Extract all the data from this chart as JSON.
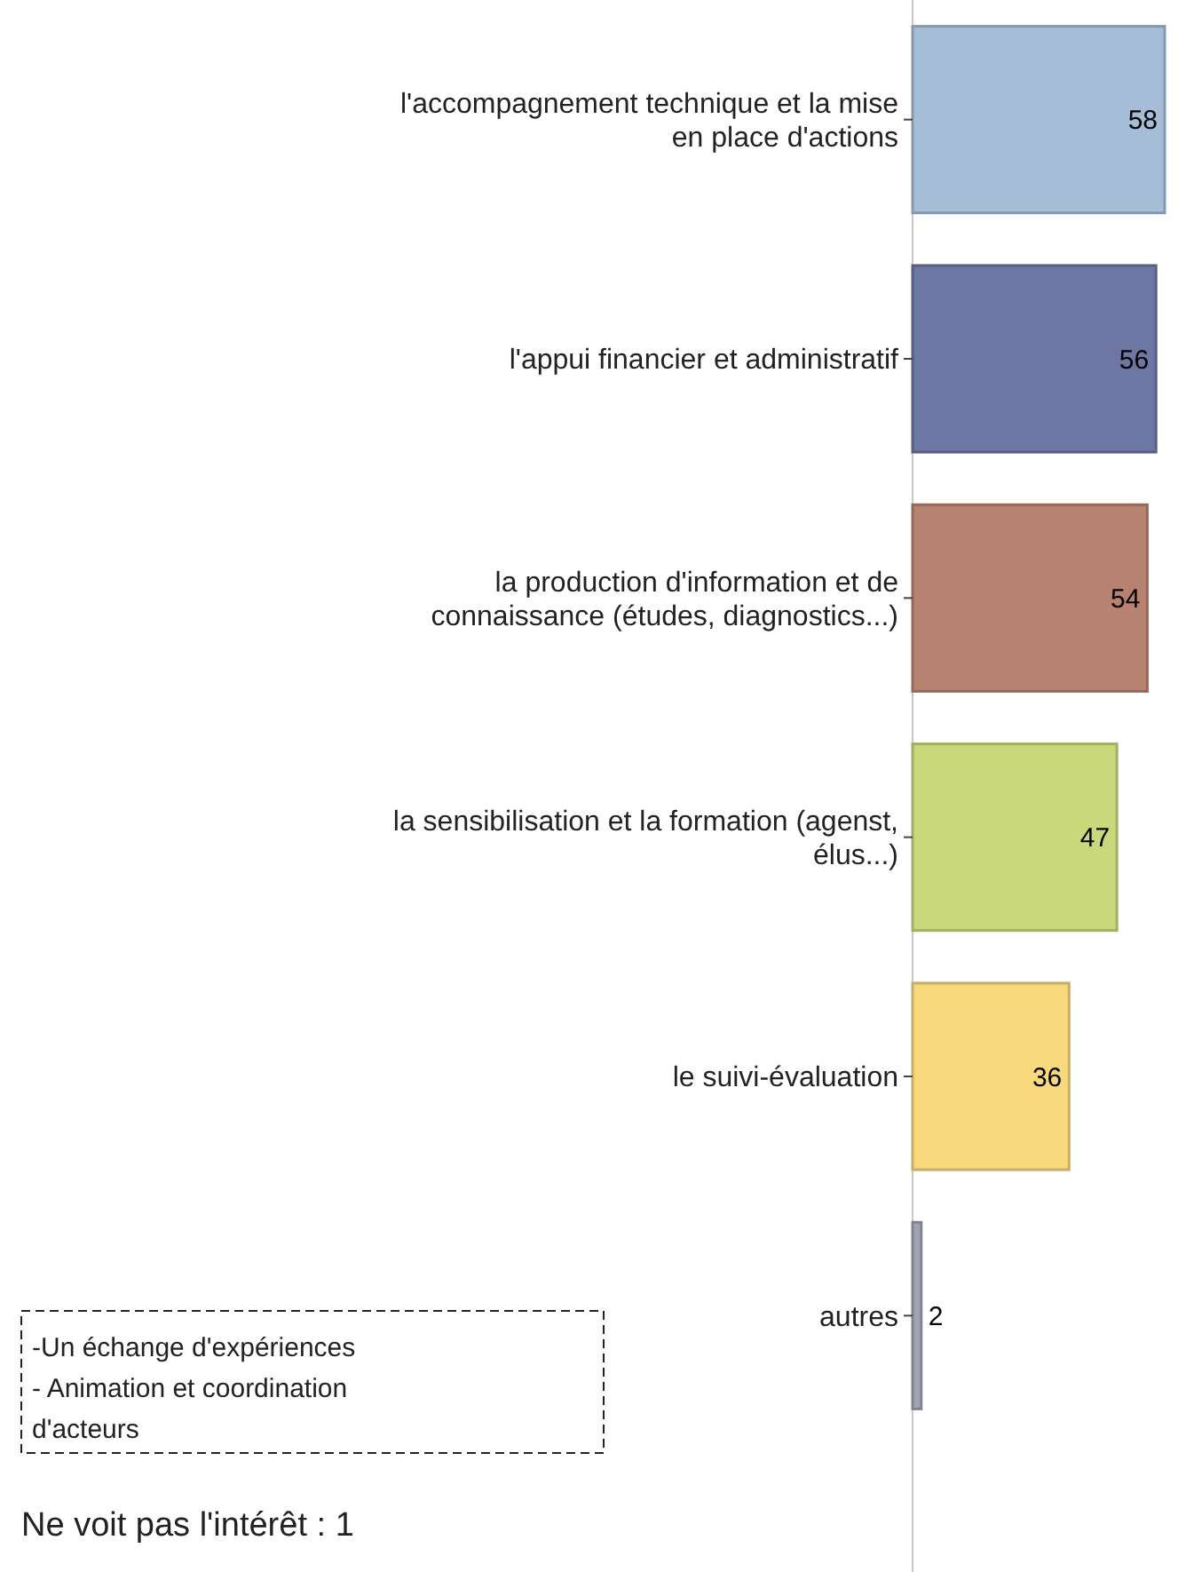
{
  "chart_data": {
    "type": "bar",
    "orientation": "horizontal",
    "categories": [
      "l'accompagnement technique et la mise\nen place d'actions",
      "l'appui financier et administratif",
      "la production d'information et de\nconnaissance (études, diagnostics...)",
      "la sensibilisation et la formation (agenst,\nélus...)",
      "le suivi-évaluation",
      "autres"
    ],
    "values": [
      58,
      56,
      54,
      47,
      36,
      2
    ],
    "colors": [
      "#a5bdd6",
      "#6e77a4",
      "#b7826f",
      "#c9d87a",
      "#f8d87c",
      "#a0a4b0"
    ],
    "tick_labels": "y",
    "data_labels": true,
    "annotations": [
      "-Un échange d'expériences\n- Animation et coordination\nd'acteurs",
      "Ne voit pas l'intérêt : 1"
    ]
  }
}
